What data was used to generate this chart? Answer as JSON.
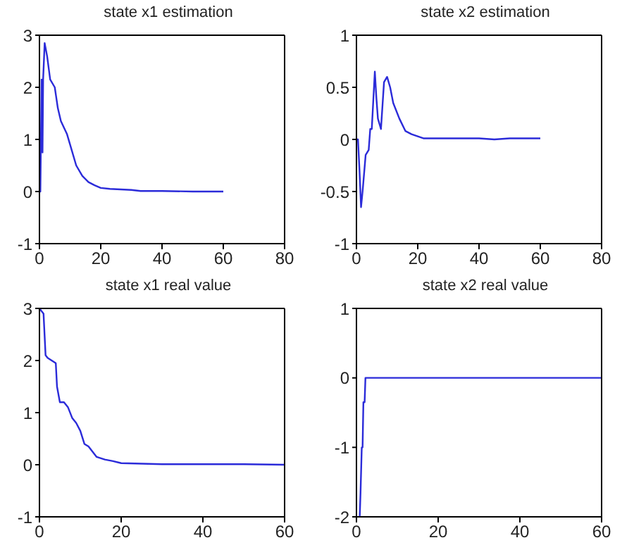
{
  "chart_data": [
    {
      "type": "line",
      "title": "state x1 estimation",
      "xlim": [
        0,
        80
      ],
      "xticks": [
        0,
        20,
        40,
        60,
        80
      ],
      "ylim": [
        -1,
        3
      ],
      "yticks": [
        -1,
        0,
        1,
        2,
        3
      ],
      "series": [
        {
          "color": "#2b2bd9",
          "x": [
            0,
            0.3,
            0.7,
            1,
            1.2,
            1.7,
            2.5,
            3.5,
            5,
            6,
            7,
            9,
            10,
            12,
            14,
            16,
            18,
            20,
            23,
            30,
            33,
            40,
            50,
            60
          ],
          "values": [
            0,
            0,
            2.15,
            0.75,
            2.15,
            2.85,
            2.6,
            2.15,
            2.0,
            1.6,
            1.35,
            1.1,
            0.9,
            0.5,
            0.3,
            0.18,
            0.12,
            0.07,
            0.05,
            0.03,
            0.01,
            0.01,
            0,
            0
          ]
        }
      ]
    },
    {
      "type": "line",
      "title": "state x2 estimation",
      "xlim": [
        0,
        80
      ],
      "xticks": [
        0,
        20,
        40,
        60,
        80
      ],
      "ylim": [
        -1,
        1
      ],
      "yticks": [
        -1,
        -0.5,
        0,
        0.5,
        1
      ],
      "series": [
        {
          "color": "#2b2bd9",
          "x": [
            0,
            0.5,
            1,
            1.5,
            2,
            3,
            4,
            4.5,
            5,
            6,
            6.5,
            7,
            8,
            9,
            10,
            11,
            12,
            14,
            16,
            18,
            20,
            22,
            40,
            45,
            50,
            60
          ],
          "values": [
            0,
            0,
            -0.3,
            -0.65,
            -0.5,
            -0.15,
            -0.1,
            0.1,
            0.1,
            0.65,
            0.4,
            0.2,
            0.1,
            0.55,
            0.6,
            0.5,
            0.35,
            0.2,
            0.08,
            0.05,
            0.03,
            0.01,
            0.01,
            0,
            0.01,
            0.01
          ]
        }
      ]
    },
    {
      "type": "line",
      "title": "state x1 real value",
      "xlim": [
        0,
        60
      ],
      "xticks": [
        0,
        20,
        40,
        60
      ],
      "ylim": [
        -1,
        3
      ],
      "yticks": [
        -1,
        0,
        1,
        2,
        3
      ],
      "series": [
        {
          "color": "#2b2bd9",
          "x": [
            0,
            1,
            1.5,
            2,
            3,
            4,
            4.3,
            5,
            6,
            7,
            8,
            9,
            10,
            11,
            12,
            13,
            14,
            16,
            18,
            20,
            30,
            40,
            50,
            60
          ],
          "values": [
            3,
            2.9,
            2.1,
            2.05,
            2.0,
            1.95,
            1.5,
            1.2,
            1.2,
            1.1,
            0.9,
            0.8,
            0.65,
            0.4,
            0.35,
            0.25,
            0.15,
            0.1,
            0.07,
            0.03,
            0.01,
            0.01,
            0.01,
            0
          ]
        }
      ]
    },
    {
      "type": "line",
      "title": "state x2 real value",
      "xlim": [
        0,
        60
      ],
      "xticks": [
        0,
        20,
        40,
        60
      ],
      "ylim": [
        -2,
        1
      ],
      "yticks": [
        -2,
        -1,
        0,
        1
      ],
      "series": [
        {
          "color": "#2b2bd9",
          "x": [
            0.8,
            1,
            1.3,
            1.5,
            1.7,
            2,
            2.2,
            60
          ],
          "values": [
            -2,
            -1.65,
            -1.0,
            -1.0,
            -0.35,
            -0.35,
            0,
            0
          ]
        }
      ]
    }
  ]
}
